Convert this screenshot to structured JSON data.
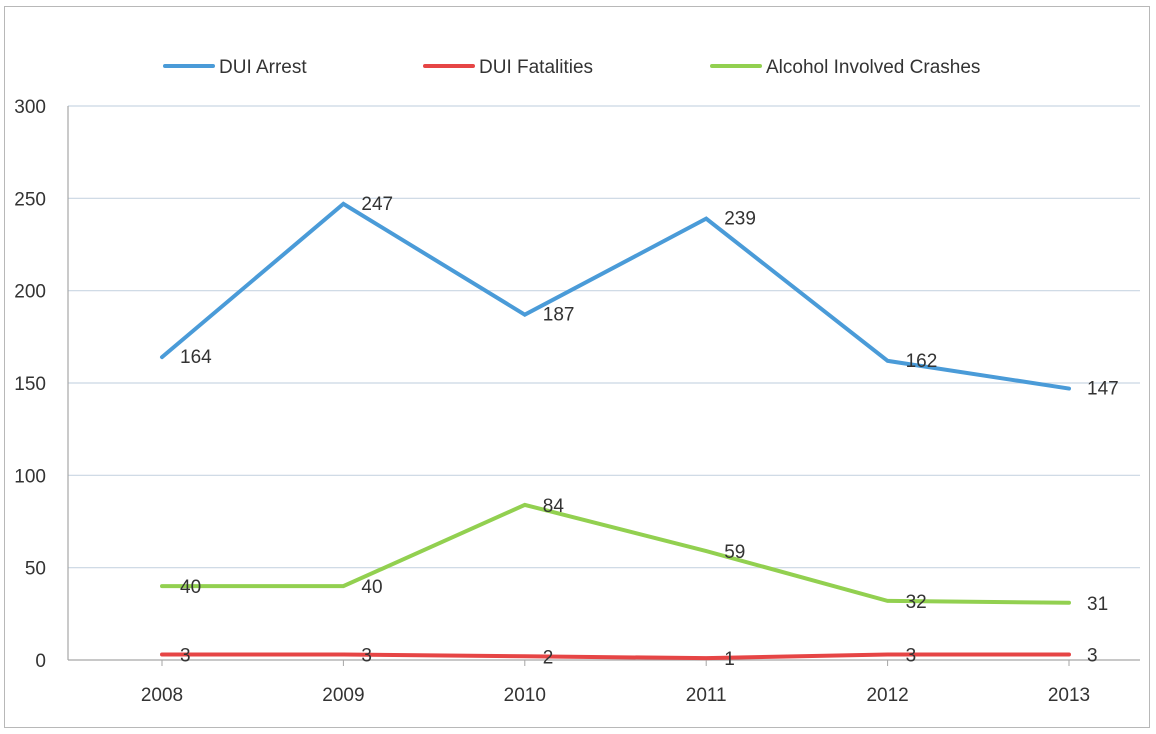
{
  "chart_data": {
    "type": "line",
    "title": "",
    "xlabel": "",
    "ylabel": "",
    "categories": [
      "2008",
      "2009",
      "2010",
      "2011",
      "2012",
      "2013"
    ],
    "series": [
      {
        "name": "DUI Arrest",
        "color": "#4a9bd8",
        "values": [
          164,
          247,
          187,
          239,
          162,
          147
        ]
      },
      {
        "name": "DUI Fatalities",
        "color": "#e64545",
        "values": [
          3,
          3,
          2,
          1,
          3,
          3
        ]
      },
      {
        "name": "Alcohol Involved Crashes",
        "color": "#92d050",
        "values": [
          40,
          40,
          84,
          59,
          32,
          31
        ]
      }
    ],
    "data_labels": [
      [
        "164",
        "247",
        "187",
        "239",
        "162",
        "147"
      ],
      [
        "3",
        "3",
        "2",
        "1",
        "3",
        "3"
      ],
      [
        "40",
        "40",
        "84",
        "59",
        "32",
        "31"
      ]
    ],
    "ylim": [
      0,
      300
    ],
    "yticks": [
      "0",
      "50",
      "100",
      "150",
      "200",
      "250",
      "300"
    ],
    "grid": true,
    "legend_position": "top"
  }
}
